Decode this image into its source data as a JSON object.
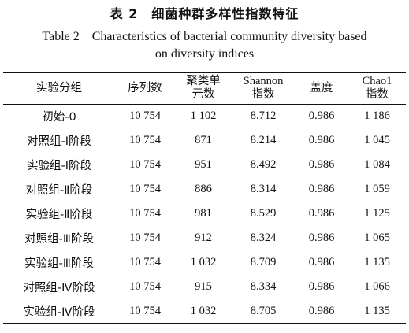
{
  "caption": {
    "title_cn": "表 2　细菌种群多样性指数特征",
    "title_en_line1": "Table 2　Characteristics of bacterial community diversity based",
    "title_en_line2": "on diversity indices"
  },
  "table": {
    "headers": [
      {
        "line1": "实验分组",
        "line2": ""
      },
      {
        "line1": "序列数",
        "line2": ""
      },
      {
        "line1": "聚类单",
        "line2": "元数"
      },
      {
        "line1": "Shannon",
        "line2": "指数"
      },
      {
        "line1": "盖度",
        "line2": ""
      },
      {
        "line1": "Chao1",
        "line2": "指数"
      }
    ],
    "rows": [
      [
        "初始-0",
        "10 754",
        "1 102",
        "8.712",
        "0.986",
        "1 186"
      ],
      [
        "对照组-Ⅰ阶段",
        "10 754",
        "871",
        "8.214",
        "0.986",
        "1 045"
      ],
      [
        "实验组-Ⅰ阶段",
        "10 754",
        "951",
        "8.492",
        "0.986",
        "1 084"
      ],
      [
        "对照组-Ⅱ阶段",
        "10 754",
        "886",
        "8.314",
        "0.986",
        "1 059"
      ],
      [
        "实验组-Ⅱ阶段",
        "10 754",
        "981",
        "8.529",
        "0.986",
        "1 125"
      ],
      [
        "对照组-Ⅲ阶段",
        "10 754",
        "912",
        "8.324",
        "0.986",
        "1 065"
      ],
      [
        "实验组-Ⅲ阶段",
        "10 754",
        "1 032",
        "8.709",
        "0.986",
        "1 135"
      ],
      [
        "对照组-Ⅳ阶段",
        "10 754",
        "915",
        "8.334",
        "0.986",
        "1 066"
      ],
      [
        "实验组-Ⅳ阶段",
        "10 754",
        "1 032",
        "8.705",
        "0.986",
        "1 135"
      ]
    ]
  }
}
